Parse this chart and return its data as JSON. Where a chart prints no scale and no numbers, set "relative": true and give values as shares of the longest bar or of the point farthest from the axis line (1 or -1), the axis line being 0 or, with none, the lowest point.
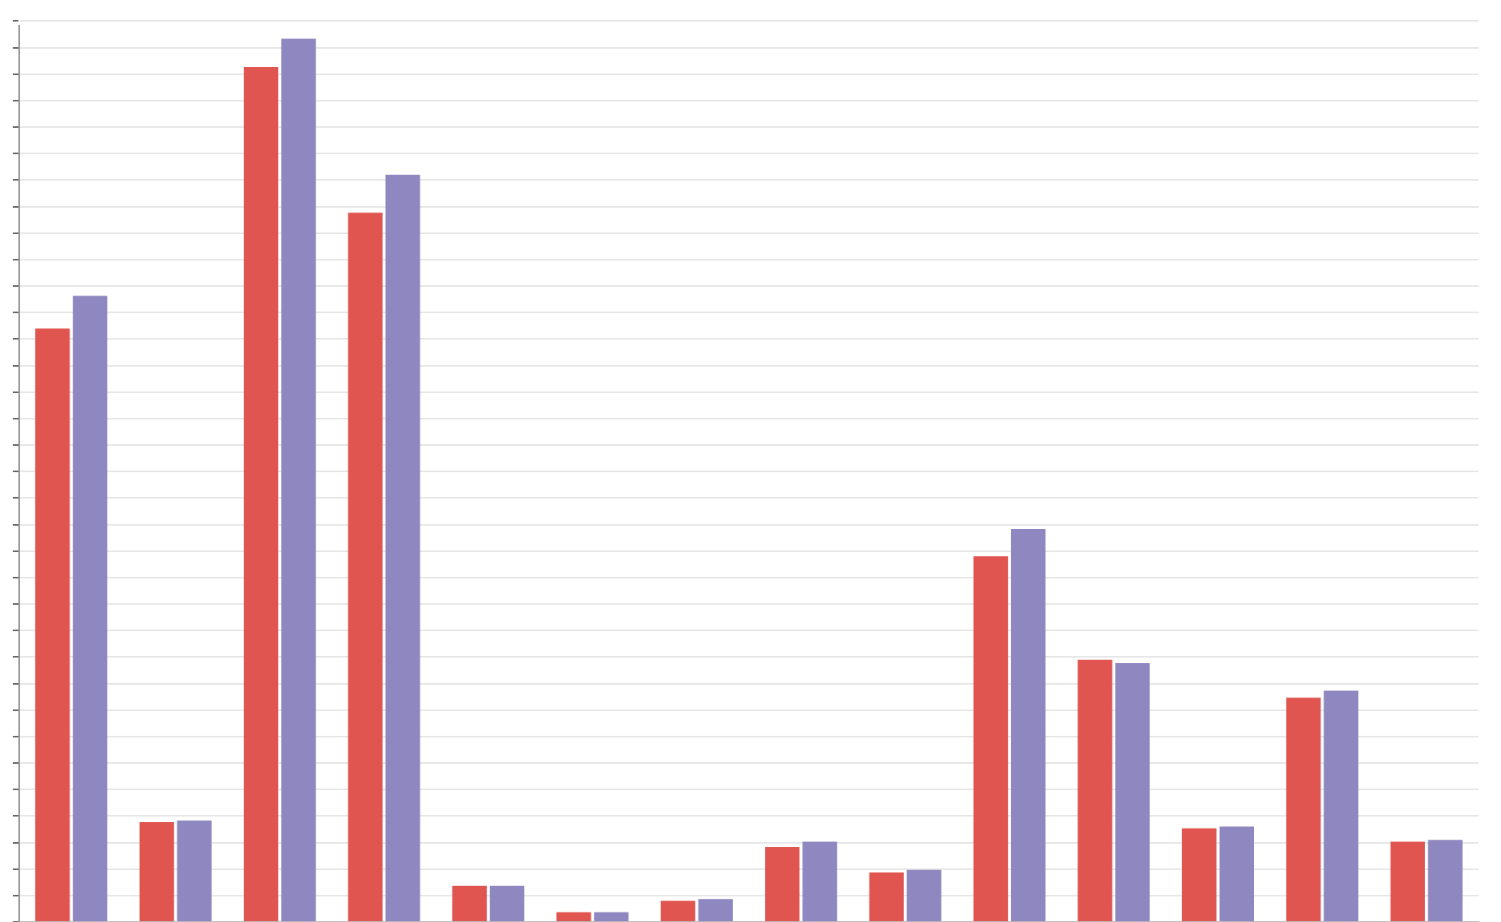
{
  "chart_data": {
    "type": "bar",
    "relative": true,
    "grid": "y",
    "categories": [
      null,
      null,
      null,
      null,
      null,
      null,
      null,
      null,
      null,
      null,
      null,
      null,
      null,
      null
    ],
    "series": [
      {
        "color": "#e15550",
        "values": [
          0.672,
          0.113,
          0.968,
          0.803,
          0.041,
          0.011,
          0.024,
          0.085,
          0.056,
          0.414,
          0.297,
          0.106,
          0.254,
          0.091
        ]
      },
      {
        "color": "#8f87c0",
        "values": [
          0.709,
          0.115,
          1,
          0.846,
          0.041,
          0.011,
          0.026,
          0.091,
          0.059,
          0.445,
          0.293,
          0.108,
          0.262,
          0.093
        ]
      }
    ]
  }
}
